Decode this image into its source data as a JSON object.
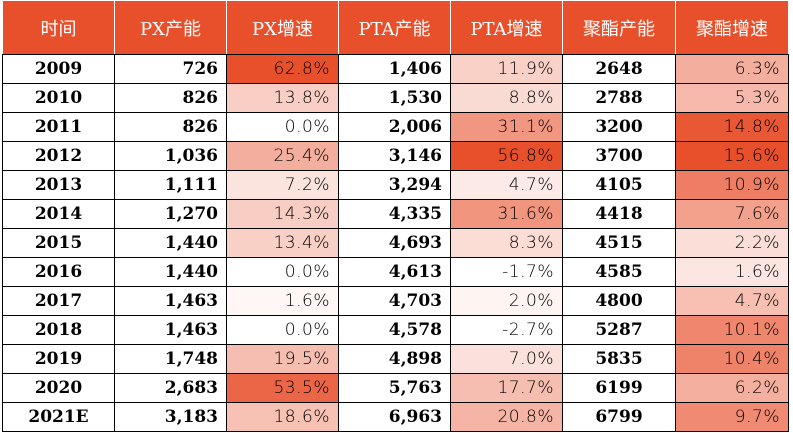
{
  "chart_data": {
    "type": "table",
    "columns": [
      "时间",
      "PX产能",
      "PX增速",
      "PTA产能",
      "PTA增速",
      "聚酯产能",
      "聚酯增速"
    ],
    "rows": [
      [
        "2009",
        "726",
        "62.8%",
        "1,406",
        "11.9%",
        "2648",
        "6.3%"
      ],
      [
        "2010",
        "826",
        "13.8%",
        "1,530",
        "8.8%",
        "2788",
        "5.3%"
      ],
      [
        "2011",
        "826",
        "0.0%",
        "2,006",
        "31.1%",
        "3200",
        "14.8%"
      ],
      [
        "2012",
        "1,036",
        "25.4%",
        "3,146",
        "56.8%",
        "3700",
        "15.6%"
      ],
      [
        "2013",
        "1,111",
        "7.2%",
        "3,294",
        "4.7%",
        "4105",
        "10.9%"
      ],
      [
        "2014",
        "1,270",
        "14.3%",
        "4,335",
        "31.6%",
        "4418",
        "7.6%"
      ],
      [
        "2015",
        "1,440",
        "13.4%",
        "4,693",
        "8.3%",
        "4515",
        "2.2%"
      ],
      [
        "2016",
        "1,440",
        "0.0%",
        "4,613",
        "-1.7%",
        "4585",
        "1.6%"
      ],
      [
        "2017",
        "1,463",
        "1.6%",
        "4,703",
        "2.0%",
        "4800",
        "4.7%"
      ],
      [
        "2018",
        "1,463",
        "0.0%",
        "4,578",
        "-2.7%",
        "5287",
        "10.1%"
      ],
      [
        "2019",
        "1,748",
        "19.5%",
        "4,898",
        "7.0%",
        "5835",
        "10.4%"
      ],
      [
        "2020",
        "2,683",
        "53.5%",
        "5,763",
        "17.7%",
        "6199",
        "6.2%"
      ],
      [
        "2021E",
        "3,183",
        "18.6%",
        "6,963",
        "20.8%",
        "6799",
        "9.7%"
      ]
    ],
    "growth_columns": [
      2,
      4,
      6
    ],
    "colors": {
      "header_bg": "#e8502c",
      "header_text": "#ffffff",
      "heat_high": "#e8502c",
      "heat_low": "#ffffff"
    }
  }
}
